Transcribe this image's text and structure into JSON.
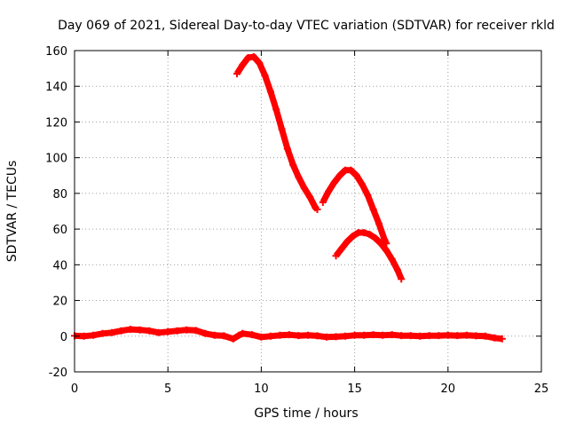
{
  "chart_data": {
    "type": "scatter",
    "title": "Day 069 of 2021, Sidereal Day-to-day VTEC variation (SDTVAR) for receiver rkld",
    "xlabel": "GPS time / hours",
    "ylabel": "SDTVAR / TECUs",
    "xlim": [
      0,
      25
    ],
    "ylim": [
      -20,
      160
    ],
    "xticks": [
      0,
      5,
      10,
      15,
      20,
      25
    ],
    "yticks": [
      -20,
      0,
      20,
      40,
      60,
      80,
      100,
      120,
      140,
      160
    ],
    "grid": true,
    "legend": "none",
    "colors": {
      "series": "#ff0000",
      "grid": "#a0a0a0",
      "axis": "#000000"
    },
    "series": [
      {
        "name": "near-zero track",
        "points": [
          [
            0.0,
            0.2
          ],
          [
            0.5,
            0.0
          ],
          [
            1.0,
            0.5
          ],
          [
            1.5,
            1.5
          ],
          [
            2.0,
            2.0
          ],
          [
            2.5,
            3.0
          ],
          [
            3.0,
            3.8
          ],
          [
            3.5,
            3.5
          ],
          [
            4.0,
            3.0
          ],
          [
            4.5,
            2.0
          ],
          [
            5.0,
            2.5
          ],
          [
            5.5,
            3.0
          ],
          [
            6.0,
            3.5
          ],
          [
            6.5,
            3.2
          ],
          [
            7.0,
            1.5
          ],
          [
            7.5,
            0.5
          ],
          [
            8.0,
            0.2
          ],
          [
            8.5,
            -1.5
          ],
          [
            8.8,
            0.5
          ],
          [
            9.0,
            1.5
          ],
          [
            9.5,
            0.8
          ],
          [
            10.0,
            -0.5
          ],
          [
            10.5,
            0.0
          ],
          [
            11.0,
            0.5
          ],
          [
            11.5,
            0.8
          ],
          [
            12.0,
            0.3
          ],
          [
            12.5,
            0.5
          ],
          [
            13.0,
            0.2
          ],
          [
            13.5,
            -0.5
          ],
          [
            14.0,
            -0.3
          ],
          [
            14.5,
            0.0
          ],
          [
            15.0,
            0.5
          ],
          [
            15.5,
            0.5
          ],
          [
            16.0,
            0.8
          ],
          [
            16.5,
            0.5
          ],
          [
            17.0,
            0.8
          ],
          [
            17.5,
            0.3
          ],
          [
            18.0,
            0.3
          ],
          [
            18.5,
            0.0
          ],
          [
            19.0,
            0.3
          ],
          [
            19.5,
            0.3
          ],
          [
            20.0,
            0.5
          ],
          [
            20.5,
            0.3
          ],
          [
            21.0,
            0.5
          ],
          [
            21.5,
            0.2
          ],
          [
            22.0,
            0.0
          ],
          [
            22.5,
            -1.0
          ],
          [
            22.9,
            -1.5
          ]
        ]
      },
      {
        "name": "arc 1",
        "points": [
          [
            8.7,
            147
          ],
          [
            9.0,
            152
          ],
          [
            9.3,
            156
          ],
          [
            9.6,
            156.5
          ],
          [
            9.9,
            153
          ],
          [
            10.2,
            146
          ],
          [
            10.5,
            137
          ],
          [
            10.8,
            127
          ],
          [
            11.1,
            116
          ],
          [
            11.4,
            105
          ],
          [
            11.7,
            96
          ],
          [
            12.0,
            89
          ],
          [
            12.3,
            83
          ],
          [
            12.6,
            78
          ],
          [
            12.9,
            72
          ],
          [
            13.0,
            71
          ]
        ]
      },
      {
        "name": "arc 2",
        "points": [
          [
            13.3,
            75
          ],
          [
            13.6,
            81
          ],
          [
            13.9,
            86
          ],
          [
            14.2,
            90
          ],
          [
            14.5,
            93
          ],
          [
            14.8,
            93
          ],
          [
            15.1,
            90
          ],
          [
            15.4,
            85
          ],
          [
            15.7,
            79
          ],
          [
            16.0,
            71
          ],
          [
            16.3,
            63
          ],
          [
            16.6,
            54
          ],
          [
            16.7,
            52
          ]
        ]
      },
      {
        "name": "arc 3",
        "points": [
          [
            14.0,
            45
          ],
          [
            14.3,
            49
          ],
          [
            14.6,
            53
          ],
          [
            14.9,
            56
          ],
          [
            15.2,
            58
          ],
          [
            15.5,
            58
          ],
          [
            15.8,
            57
          ],
          [
            16.1,
            55
          ],
          [
            16.4,
            52
          ],
          [
            16.7,
            48
          ],
          [
            17.0,
            43
          ],
          [
            17.3,
            37
          ],
          [
            17.5,
            32
          ]
        ]
      }
    ]
  }
}
